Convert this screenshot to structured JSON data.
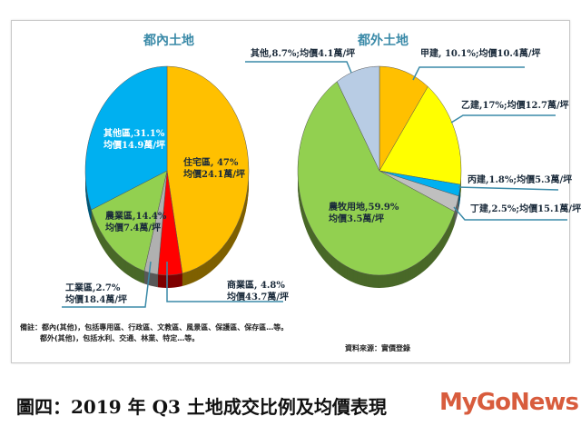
{
  "chart_data": [
    {
      "type": "pie",
      "title": "都內土地",
      "slices": [
        {
          "label": "住宅區, 47%",
          "price": "均價24.1萬/坪",
          "value": 47,
          "color": "#ffc000"
        },
        {
          "label": "商業區, 4.8%",
          "price": "均價43.7萬/坪",
          "value": 4.8,
          "color": "#ff0000"
        },
        {
          "label": "工業區,2.7%",
          "price": "均價18.4萬/坪",
          "value": 2.7,
          "color": "#b0b0b0"
        },
        {
          "label": "農業區,14.4%",
          "price": "均價7.4萬/坪",
          "value": 14.4,
          "color": "#92d050"
        },
        {
          "label": "其他區,31.1%",
          "price": "均價14.9萬/坪",
          "value": 31.1,
          "color": "#00b0f0"
        }
      ]
    },
    {
      "type": "pie",
      "title": "都外土地",
      "slices": [
        {
          "label": "甲建, 10.1%;均價10.4萬/坪",
          "value": 10.1,
          "color": "#ffc000"
        },
        {
          "label": "乙建,17%;均價12.7萬/坪",
          "value": 17,
          "color": "#ffff00"
        },
        {
          "label": "丙建,1.8%;均價5.3萬/坪",
          "value": 1.8,
          "color": "#00b0f0"
        },
        {
          "label": "丁建,2.5%;均價15.1萬/坪",
          "value": 2.5,
          "color": "#bfbfbf"
        },
        {
          "label": "農牧用地,59.9%",
          "price": "均價3.5萬/坪",
          "value": 59.9,
          "color": "#92d050"
        },
        {
          "label": "其他,8.7%;均價4.1萬/坪",
          "value": 8.7,
          "color": "#b8cce4"
        }
      ]
    }
  ],
  "notes": {
    "line1": "備註：都內(其他)，包括專用區、行政區、文教區、風景區、保護區、保存區…等。",
    "line2": "都外(其他)，包括水利、交通、林業、特定…等。",
    "source": "資料來源：實價登錄"
  },
  "caption": "圖四：2019 年 Q3 土地成交比例及均價表現",
  "watermark": "MyGoNews"
}
